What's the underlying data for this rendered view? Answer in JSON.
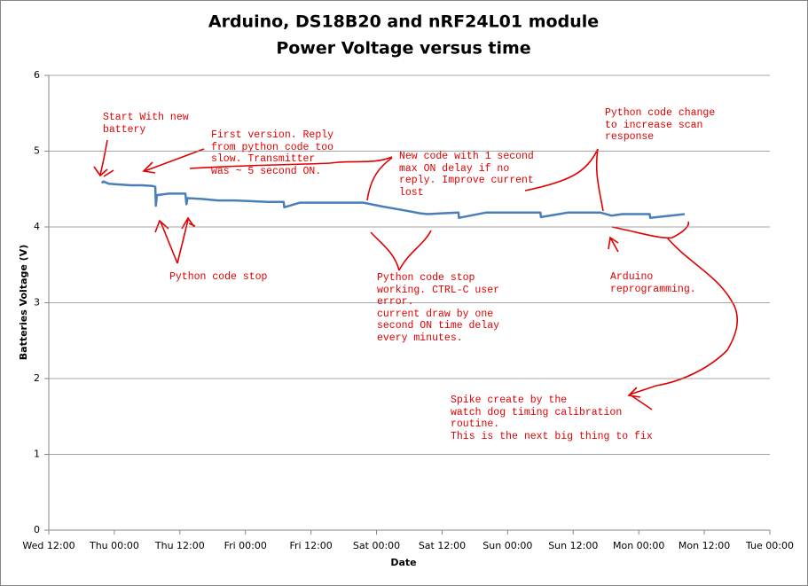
{
  "chart_data": {
    "type": "line",
    "title": "Arduino, DS18B20 and nRF24L01 module",
    "subtitle": "Power Voltage versus time",
    "x_label": "Date",
    "y_label": "Batteries Voltage (V)",
    "x": [
      9.7,
      10,
      11,
      13,
      15,
      17,
      19,
      19.5,
      19.6,
      19.8,
      22,
      25,
      25.2,
      25.4,
      28,
      31,
      34,
      37,
      40,
      43,
      43.1,
      46,
      49,
      52,
      55,
      57.6,
      61,
      65,
      68,
      69.3,
      72,
      75,
      75.1,
      80,
      85,
      90,
      90.1,
      95,
      100,
      101,
      103,
      105,
      110,
      110.1,
      116.4
    ],
    "values": [
      4.58,
      4.6,
      4.57,
      4.56,
      4.55,
      4.55,
      4.54,
      4.53,
      4.28,
      4.42,
      4.44,
      4.44,
      4.3,
      4.38,
      4.37,
      4.35,
      4.35,
      4.34,
      4.33,
      4.33,
      4.26,
      4.32,
      4.32,
      4.32,
      4.32,
      4.32,
      4.27,
      4.22,
      4.18,
      4.17,
      4.18,
      4.19,
      4.12,
      4.19,
      4.19,
      4.19,
      4.13,
      4.19,
      4.19,
      4.19,
      4.15,
      4.17,
      4.17,
      4.12,
      4.17
    ],
    "color": "#4a7ebb",
    "xlim": [
      0,
      132
    ],
    "xticks": [
      {
        "value": 0,
        "label": "Wed 12:00"
      },
      {
        "value": 12,
        "label": "Thu 00:00"
      },
      {
        "value": 24,
        "label": "Thu 12:00"
      },
      {
        "value": 36,
        "label": "Fri 00:00"
      },
      {
        "value": 48,
        "label": "Fri 12:00"
      },
      {
        "value": 60,
        "label": "Sat 00:00"
      },
      {
        "value": 72,
        "label": "Sat 12:00"
      },
      {
        "value": 84,
        "label": "Sun 00:00"
      },
      {
        "value": 96,
        "label": "Sun 12:00"
      },
      {
        "value": 108,
        "label": "Mon 00:00"
      },
      {
        "value": 120,
        "label": "Mon 12:00"
      },
      {
        "value": 132,
        "label": "Tue 00:00"
      }
    ],
    "ylim": [
      0,
      6
    ],
    "yticks": [
      0,
      1,
      2,
      3,
      4,
      5,
      6
    ],
    "grid": true,
    "annotations": [
      "Start With new\nbattery",
      "First version. Reply\nfrom python code too\nslow. Transmitter\nwas ~ 5 second ON.",
      "New code with 1 second\nmax ON delay if no\nreply. Improve current\nlost",
      "Python code change\nto increase scan\nresponse",
      "Python code stop",
      "Python code stop\nworking. CTRL-C user\nerror.\ncurrent draw by one\nsecond ON time delay\nevery minutes.",
      "Arduino\nreprogramming.",
      "Spike create by the\nwatch dog timing calibration\nroutine.\nThis is the next big thing to fix"
    ]
  }
}
